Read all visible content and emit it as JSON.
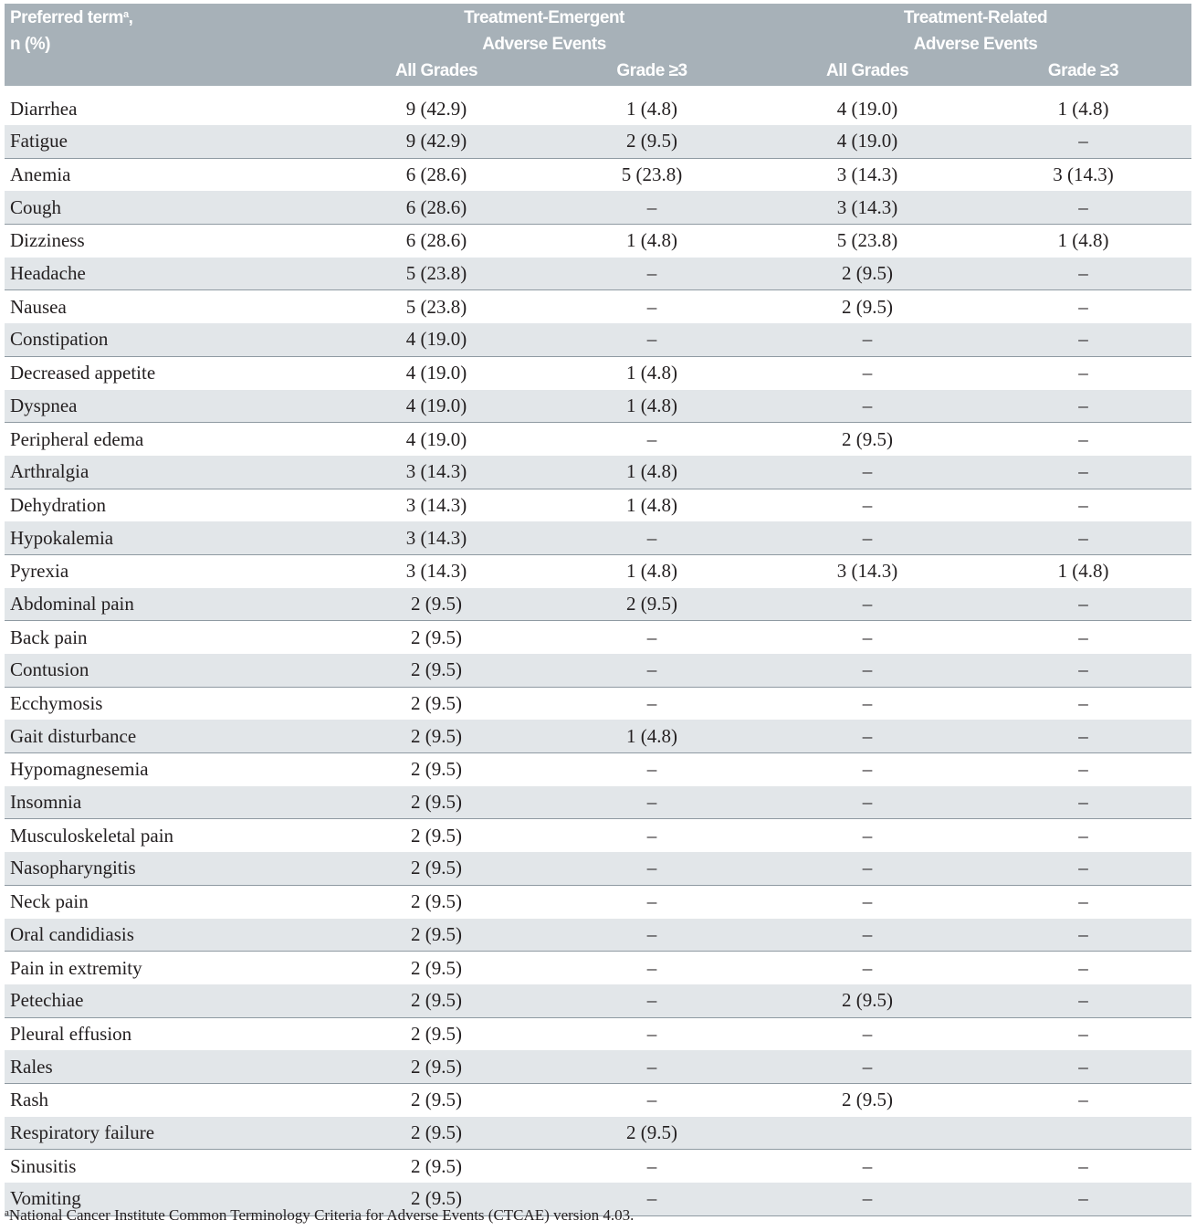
{
  "header": {
    "term_line1": "Preferred term",
    "term_sup": "a",
    "term_comma": ",",
    "term_line2": "n (%)",
    "teae_line1": "Treatment-Emergent",
    "teae_line2": "Adverse Events",
    "trae_line1": "Treatment-Related",
    "trae_line2": "Adverse Events",
    "all_grades": "All Grades",
    "grade3": "Grade ≥3"
  },
  "rows": [
    [
      "Diarrhea",
      "9 (42.9)",
      "1 (4.8)",
      "4 (19.0)",
      "1 (4.8)"
    ],
    [
      "Fatigue",
      "9 (42.9)",
      "2 (9.5)",
      "4 (19.0)",
      "–"
    ],
    [
      "Anemia",
      "6 (28.6)",
      "5 (23.8)",
      "3 (14.3)",
      "3 (14.3)"
    ],
    [
      "Cough",
      "6 (28.6)",
      "–",
      "3 (14.3)",
      "–"
    ],
    [
      "Dizziness",
      "6 (28.6)",
      "1 (4.8)",
      "5 (23.8)",
      "1 (4.8)"
    ],
    [
      "Headache",
      "5 (23.8)",
      "–",
      "2 (9.5)",
      "–"
    ],
    [
      "Nausea",
      "5 (23.8)",
      "–",
      "2 (9.5)",
      "–"
    ],
    [
      "Constipation",
      "4 (19.0)",
      "–",
      "–",
      "–"
    ],
    [
      "Decreased appetite",
      "4 (19.0)",
      "1 (4.8)",
      "–",
      "–"
    ],
    [
      "Dyspnea",
      "4 (19.0)",
      "1 (4.8)",
      "–",
      "–"
    ],
    [
      "Peripheral edema",
      "4 (19.0)",
      "–",
      "2 (9.5)",
      "–"
    ],
    [
      "Arthralgia",
      "3 (14.3)",
      "1 (4.8)",
      "–",
      "–"
    ],
    [
      "Dehydration",
      "3 (14.3)",
      "1 (4.8)",
      "–",
      "–"
    ],
    [
      "Hypokalemia",
      "3 (14.3)",
      "–",
      "–",
      "–"
    ],
    [
      "Pyrexia",
      "3 (14.3)",
      "1 (4.8)",
      "3 (14.3)",
      "1 (4.8)"
    ],
    [
      "Abdominal pain",
      "2 (9.5)",
      "2 (9.5)",
      "–",
      "–"
    ],
    [
      "Back pain",
      "2 (9.5)",
      "–",
      "–",
      "–"
    ],
    [
      "Contusion",
      "2 (9.5)",
      "–",
      "–",
      "–"
    ],
    [
      "Ecchymosis",
      "2 (9.5)",
      "–",
      "–",
      "–"
    ],
    [
      "Gait disturbance",
      "2 (9.5)",
      "1 (4.8)",
      "–",
      "–"
    ],
    [
      "Hypomagnesemia",
      "2 (9.5)",
      "–",
      "–",
      "–"
    ],
    [
      "Insomnia",
      "2 (9.5)",
      "–",
      "–",
      "–"
    ],
    [
      "Musculoskeletal pain",
      "2 (9.5)",
      "–",
      "–",
      "–"
    ],
    [
      "Nasopharyngitis",
      "2 (9.5)",
      "–",
      "–",
      "–"
    ],
    [
      "Neck pain",
      "2 (9.5)",
      "–",
      "–",
      "–"
    ],
    [
      "Oral candidiasis",
      "2 (9.5)",
      "–",
      "–",
      "–"
    ],
    [
      "Pain in extremity",
      "2 (9.5)",
      "–",
      "–",
      "–"
    ],
    [
      "Petechiae",
      "2 (9.5)",
      "–",
      "2 (9.5)",
      "–"
    ],
    [
      "Pleural effusion",
      "2 (9.5)",
      "–",
      "–",
      "–"
    ],
    [
      "Rales",
      "2 (9.5)",
      "–",
      "–",
      "–"
    ],
    [
      "Rash",
      "2 (9.5)",
      "–",
      "2 (9.5)",
      "–"
    ],
    [
      "Respiratory failure",
      "2 (9.5)",
      "2 (9.5)",
      "",
      ""
    ],
    [
      "Sinusitis",
      "2 (9.5)",
      "–",
      "–",
      "–"
    ],
    [
      "Vomiting",
      "2 (9.5)",
      "–",
      "–",
      "–"
    ]
  ],
  "footnote": {
    "marker": "a",
    "text": "National Cancer Institute Common Terminology Criteria for Adverse Events (CTCAE) version 4.03."
  },
  "colors": {
    "header_bg": "#a7b1b8",
    "stripe_bg": "#e2e6e9",
    "rule": "#8f9aa2"
  }
}
